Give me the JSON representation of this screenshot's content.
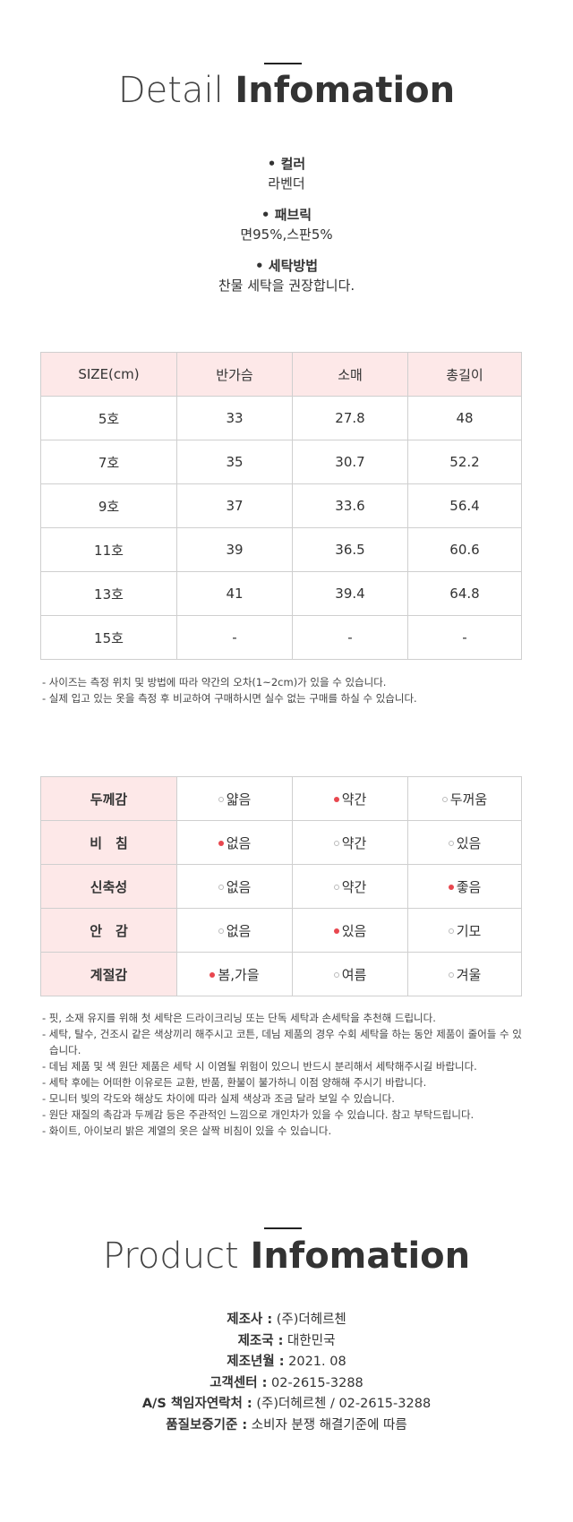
{
  "detail": {
    "title": {
      "light": "Detail",
      "bold": "Infomation"
    },
    "items": [
      {
        "label": "• 컬러",
        "value": "라벤더"
      },
      {
        "label": "• 패브릭",
        "value": "면95%,스판5%"
      },
      {
        "label": "• 세탁방법",
        "value": "찬물 세탁을 권장합니다."
      }
    ]
  },
  "size_table": {
    "header": [
      "SIZE(cm)",
      "반가슴",
      "소매",
      "총길이"
    ],
    "rows": [
      [
        "5호",
        "33",
        "27.8",
        "48"
      ],
      [
        "7호",
        "35",
        "30.7",
        "52.2"
      ],
      [
        "9호",
        "37",
        "33.6",
        "56.4"
      ],
      [
        "11호",
        "39",
        "36.5",
        "60.6"
      ],
      [
        "13호",
        "41",
        "39.4",
        "64.8"
      ],
      [
        "15호",
        "-",
        "-",
        "-"
      ]
    ],
    "notes": [
      "- 사이즈는 측정 위치 및 방법에 따라 약간의 오차(1~2cm)가 있을 수 있습니다.",
      "- 실제 입고 있는 옷을 측정 후 비교하여 구매하시면 실수 없는 구매를 하실 수 있습니다."
    ]
  },
  "feature_table": {
    "rows": [
      {
        "label": "두께감",
        "options": [
          "얇음",
          "약간",
          "두꺼움"
        ],
        "selected": 1
      },
      {
        "label": "비　침",
        "options": [
          "없음",
          "약간",
          "있음"
        ],
        "selected": 0
      },
      {
        "label": "신축성",
        "options": [
          "없음",
          "약간",
          "좋음"
        ],
        "selected": 2
      },
      {
        "label": "안　감",
        "options": [
          "없음",
          "있음",
          "기모"
        ],
        "selected": 1
      },
      {
        "label": "계절감",
        "options": [
          "봄,가을",
          "여름",
          "겨울"
        ],
        "selected": 0
      }
    ],
    "notes": [
      "- 핏, 소재 유지를 위해 첫 세탁은 드라이크리닝 또는 단독 세탁과 손세탁을 추천해 드립니다.",
      "- 세탁, 탈수, 건조시 같은 색상끼리 해주시고 코튼, 데님 제품의 경우 수회 세탁을 하는 동안 제품이 줄어들 수 있습니다.",
      "- 데님 제품 및 색 원단 제품은 세탁 시 이염될 위험이 있으니 반드시 분리해서 세탁해주시길 바랍니다.",
      "- 세탁 후에는 어떠한 이유로든 교환, 반품, 환불이 불가하니 이점 양해해 주시기 바랍니다.",
      "- 모니터 빛의 각도와 해상도 차이에 따라 실제 색상과 조금 달라 보일 수 있습니다.",
      "- 원단 재질의 촉감과 두께감 등은 주관적인 느낌으로 개인차가 있을 수 있습니다. 참고 부탁드립니다.",
      "- 화이트, 아이보리 밝은 계열의 옷은 살짝 비침이 있을 수 있습니다."
    ]
  },
  "product": {
    "title": {
      "light": "Product",
      "bold": "Infomation"
    },
    "items": [
      {
        "label": "제조사 :",
        "value": "(주)더헤르첸"
      },
      {
        "label": "제조국 :",
        "value": "대한민국"
      },
      {
        "label": "제조년월 :",
        "value": "2021. 08"
      },
      {
        "label": "고객센터 :",
        "value": "02-2615-3288"
      },
      {
        "label": "A/S 책임자연락처 :",
        "value": "(주)더헤르첸 / 02-2615-3288"
      },
      {
        "label": "품질보증기준 :",
        "value": "소비자 분쟁 해결기준에 따름"
      }
    ]
  }
}
